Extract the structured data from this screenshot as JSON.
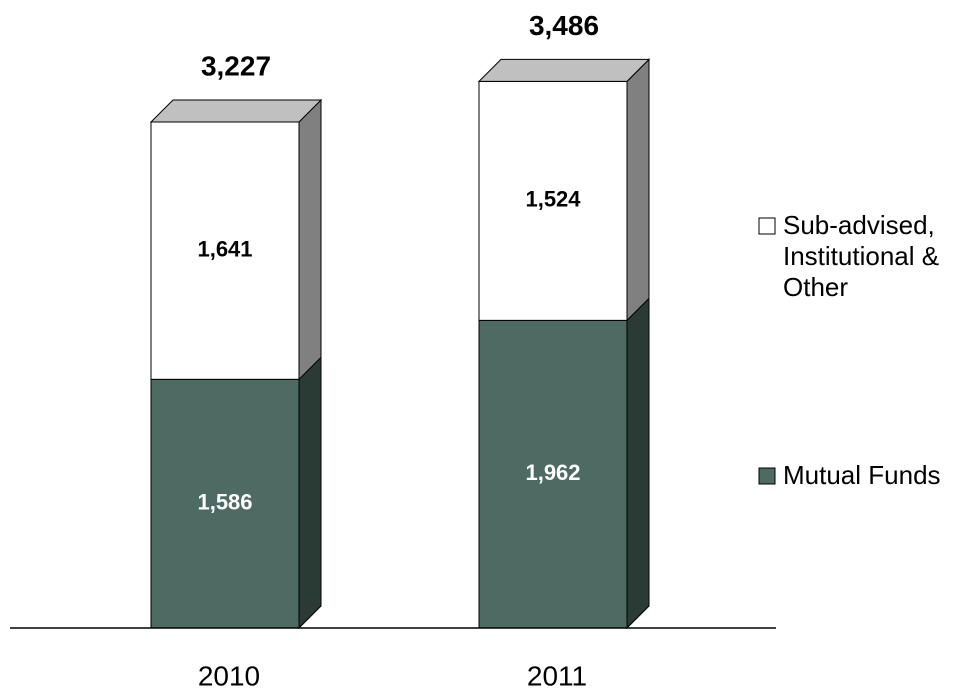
{
  "chart_data": {
    "type": "stacked-bar-3d",
    "categories": [
      "2010",
      "2011"
    ],
    "series": [
      {
        "name": "Mutual Funds",
        "color": "#4d6b62",
        "values": [
          1586,
          1962
        ],
        "value_labels": [
          "1,586",
          "1,962"
        ]
      },
      {
        "name": "Sub-advised, Institutional & Other",
        "color": "#ffffff",
        "values": [
          1641,
          1524
        ],
        "value_labels": [
          "1,641",
          "1,524"
        ]
      }
    ],
    "totals": [
      3227,
      3486
    ],
    "total_labels": [
      "3,227",
      "3,486"
    ]
  }
}
